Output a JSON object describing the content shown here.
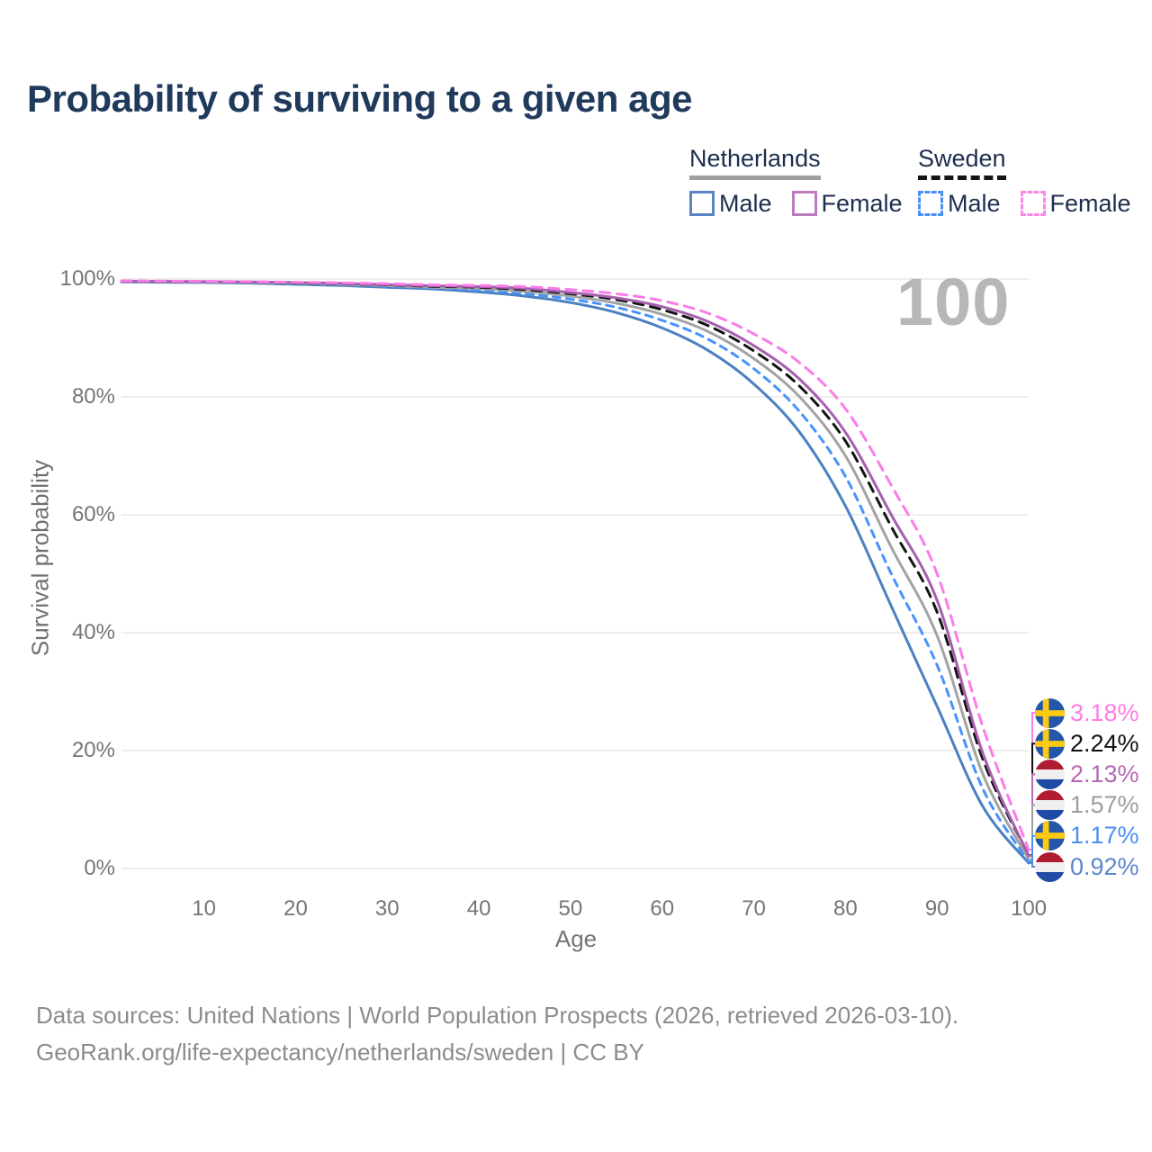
{
  "title": "Probability of surviving to a given age",
  "age_indicator": "100",
  "legend": {
    "groups": [
      {
        "label": "Netherlands",
        "line_style": "solid",
        "line_color": "#9e9e9e",
        "items": [
          {
            "label": "Male",
            "color": "#5b84c4",
            "dashed": false
          },
          {
            "label": "Female",
            "color": "#bc7bbc",
            "dashed": false
          }
        ]
      },
      {
        "label": "Sweden",
        "line_style": "dashed",
        "line_color": "#141414",
        "items": [
          {
            "label": "Male",
            "color": "#4a90f5",
            "dashed": true
          },
          {
            "label": "Female",
            "color": "#fb86e8",
            "dashed": true
          }
        ]
      }
    ]
  },
  "chart_data": {
    "type": "line",
    "title": "Probability of surviving to a given age",
    "xlabel": "Age",
    "ylabel": "Survival probability",
    "xlim": [
      1,
      100
    ],
    "ylim": [
      0,
      100
    ],
    "x_ticks": [
      10,
      20,
      30,
      40,
      50,
      60,
      70,
      80,
      90,
      100
    ],
    "y_ticks": [
      0,
      20,
      40,
      60,
      80,
      100
    ],
    "y_tick_labels": [
      "0%",
      "20%",
      "40%",
      "60%",
      "80%",
      "100%"
    ],
    "grid": "horizontal",
    "legend_position": "top-right",
    "ages": [
      1,
      5,
      10,
      15,
      20,
      25,
      30,
      35,
      40,
      45,
      50,
      55,
      60,
      65,
      70,
      75,
      80,
      85,
      90,
      95,
      100
    ],
    "series": [
      {
        "name": "Netherlands Male",
        "country": "Netherlands",
        "sex": "Male",
        "flag": "nl",
        "color": "#4b80c2",
        "dashed": false,
        "dash_pattern": "",
        "end_value": 0.92,
        "end_label": "0.92%",
        "label_color": "#5d87cb",
        "values": [
          99.5,
          99.45,
          99.4,
          99.3,
          99.1,
          98.9,
          98.6,
          98.3,
          97.8,
          97.1,
          96.0,
          94.3,
          91.7,
          87.9,
          82.2,
          74.0,
          61.5,
          44.5,
          27.5,
          10.5,
          0.92
        ]
      },
      {
        "name": "Sweden Male",
        "country": "Sweden",
        "sex": "Male",
        "flag": "se",
        "color": "#4793fc",
        "dashed": true,
        "dash_pattern": "8 7",
        "end_value": 1.17,
        "end_label": "1.17%",
        "label_color": "#4a90f2",
        "values": [
          99.6,
          99.55,
          99.5,
          99.4,
          99.25,
          99.05,
          98.8,
          98.5,
          98.1,
          97.5,
          96.6,
          95.2,
          93.0,
          89.8,
          84.8,
          77.5,
          66.5,
          50.0,
          34.5,
          13.5,
          1.17
        ]
      },
      {
        "name": "Netherlands",
        "country": "Netherlands",
        "sex": "Both",
        "flag": "nl",
        "color": "#a3a3a3",
        "dashed": false,
        "dash_pattern": "",
        "end_value": 1.57,
        "end_label": "1.57%",
        "label_color": "#9e9e9e",
        "values": [
          99.6,
          99.55,
          99.5,
          99.4,
          99.3,
          99.1,
          98.9,
          98.6,
          98.4,
          97.9,
          97.1,
          95.9,
          94.0,
          91.1,
          86.5,
          80.0,
          70.0,
          54.5,
          39.5,
          16.0,
          1.57
        ]
      },
      {
        "name": "Sweden",
        "country": "Sweden",
        "sex": "Both",
        "flag": "se",
        "color": "#131313",
        "dashed": true,
        "dash_pattern": "11 8",
        "end_value": 2.24,
        "end_label": "2.24%",
        "label_color": "#111111",
        "values": [
          99.65,
          99.6,
          99.55,
          99.5,
          99.35,
          99.2,
          99.0,
          98.75,
          98.6,
          98.2,
          97.5,
          96.5,
          94.8,
          92.1,
          87.8,
          81.8,
          72.5,
          58.0,
          43.5,
          18.5,
          2.24
        ]
      },
      {
        "name": "Netherlands Female",
        "country": "Netherlands",
        "sex": "Female",
        "flag": "nl",
        "color": "#a55fae",
        "dashed": false,
        "dash_pattern": "",
        "end_value": 2.13,
        "end_label": "2.13%",
        "label_color": "#b66ab4",
        "values": [
          99.6,
          99.6,
          99.55,
          99.5,
          99.4,
          99.25,
          99.05,
          98.85,
          98.7,
          98.4,
          97.7,
          96.8,
          95.3,
          92.8,
          88.7,
          83.0,
          74.0,
          60.0,
          45.5,
          19.5,
          2.13
        ]
      },
      {
        "name": "Sweden Female",
        "country": "Sweden",
        "sex": "Female",
        "flag": "se",
        "color": "#fb7ce8",
        "dashed": true,
        "dash_pattern": "11 8",
        "end_value": 3.18,
        "end_label": "3.18%",
        "label_color": "#ff7ce5",
        "values": [
          99.7,
          99.65,
          99.6,
          99.55,
          99.45,
          99.35,
          99.2,
          99.0,
          98.9,
          98.7,
          98.2,
          97.5,
          96.3,
          94.2,
          90.7,
          85.8,
          78.0,
          65.0,
          50.0,
          24.0,
          3.18
        ]
      }
    ]
  },
  "footer": {
    "line1": "Data sources: United Nations | World Population Prospects (2026, retrieved 2026-03-10).",
    "line2": "GeoRank.org/life-expectancy/netherlands/sweden | CC BY"
  }
}
